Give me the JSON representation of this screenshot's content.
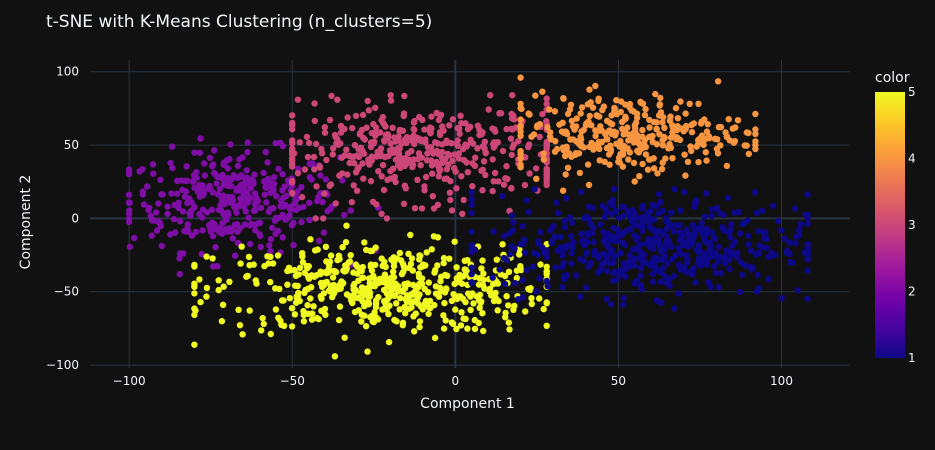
{
  "chart_data": {
    "type": "scatter",
    "title": "t-SNE with K-Means Clustering (n_clusters=5)",
    "xlabel": "Component 1",
    "ylabel": "Component 2",
    "xlim": [
      -112,
      121
    ],
    "ylim": [
      -102,
      108
    ],
    "x_ticks": [
      -100,
      -50,
      0,
      50,
      100
    ],
    "y_ticks": [
      -100,
      -50,
      0,
      50,
      100
    ],
    "x_tick_labels": [
      "−100",
      "−50",
      "0",
      "50",
      "100"
    ],
    "y_tick_labels": [
      "−100",
      "−50",
      "0",
      "50",
      "100"
    ],
    "grid": true,
    "colorbar": {
      "title": "color",
      "range": [
        1,
        5
      ],
      "ticks": [
        1,
        2,
        3,
        4,
        5
      ],
      "tick_labels": [
        "1",
        "2",
        "3",
        "4",
        "5"
      ],
      "colorscale": [
        "#0d0887",
        "#46039f",
        "#7201a8",
        "#9c179e",
        "#bd3786",
        "#d8576b",
        "#ed7953",
        "#fb9f3a",
        "#fdca26",
        "#f0f921"
      ]
    },
    "clusters": [
      {
        "label": 1,
        "color": "#0d0887",
        "center": [
          60,
          -18
        ],
        "spread": [
          24,
          17
        ],
        "points": 520,
        "x_range": [
          5,
          108
        ],
        "y_range": [
          -72,
          20
        ]
      },
      {
        "label": 2,
        "color": "#7f0ea6",
        "center": [
          -68,
          12
        ],
        "spread": [
          16,
          17
        ],
        "points": 360,
        "x_range": [
          -100,
          -22
        ],
        "y_range": [
          -38,
          58
        ]
      },
      {
        "label": 3,
        "color": "#cc4778",
        "center": [
          -10,
          45
        ],
        "spread": [
          24,
          16
        ],
        "points": 430,
        "x_range": [
          -50,
          28
        ],
        "y_range": [
          0,
          84
        ]
      },
      {
        "label": 4,
        "color": "#f89540",
        "center": [
          52,
          58
        ],
        "spread": [
          18,
          13
        ],
        "points": 320,
        "x_range": [
          20,
          92
        ],
        "y_range": [
          15,
          96
        ]
      },
      {
        "label": 5,
        "color": "#f0f921",
        "center": [
          -22,
          -48
        ],
        "spread": [
          26,
          15
        ],
        "points": 520,
        "x_range": [
          -80,
          28
        ],
        "y_range": [
          -94,
          -5
        ]
      }
    ]
  },
  "colors": {
    "background": "#111111",
    "grid": "#283442",
    "zeroline": "#283442",
    "text": "#f2f5fa"
  }
}
